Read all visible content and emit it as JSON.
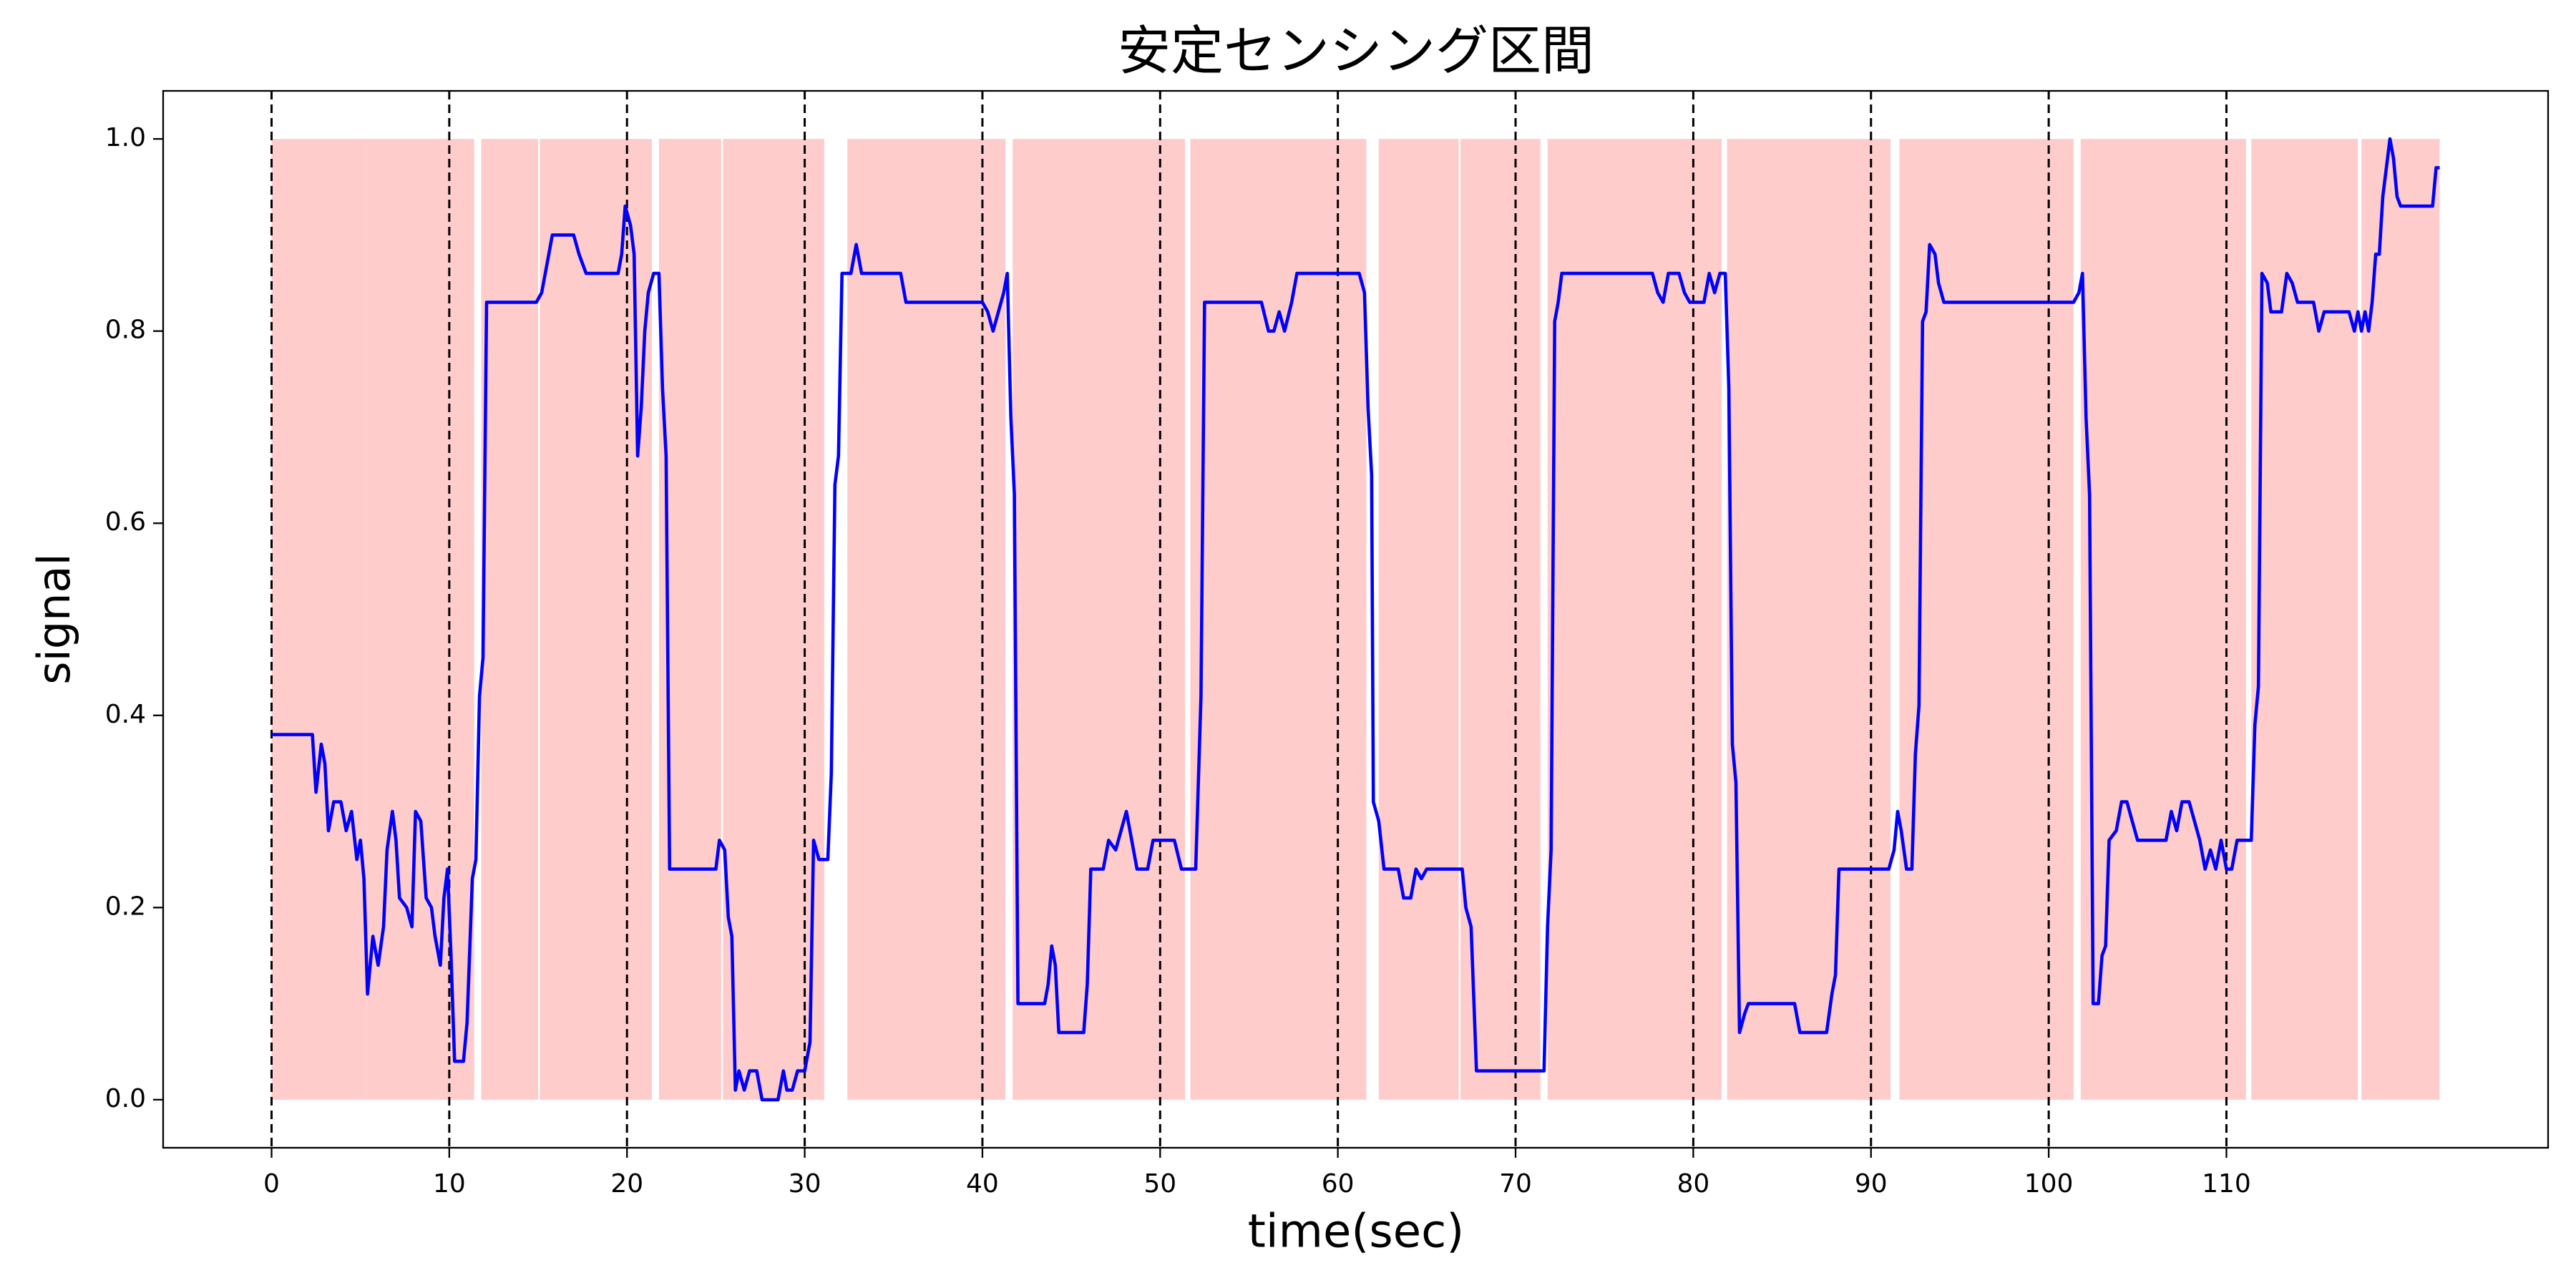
{
  "chart_data": {
    "type": "line",
    "title": "安定センシング区間",
    "xlabel": "time(sec)",
    "ylabel": "signal",
    "xlim": [
      -6.1,
      128.1
    ],
    "ylim": [
      -0.05,
      1.05
    ],
    "xticks": [
      0,
      10,
      20,
      30,
      40,
      50,
      60,
      70,
      80,
      90,
      100,
      110
    ],
    "yticks": [
      {
        "value": 0,
        "label": "0.0"
      },
      {
        "value": 0.2,
        "label": "0.2"
      },
      {
        "value": 0.4,
        "label": "0.4"
      },
      {
        "value": 0.6,
        "label": "0.6"
      },
      {
        "value": 0.8,
        "label": "0.8"
      },
      {
        "value": 1,
        "label": "1.0"
      }
    ],
    "dashed_tick_lines": true,
    "span_color": "#ffcccc",
    "span_y": [
      0,
      1
    ],
    "spans": [
      [
        0,
        5.3
      ],
      [
        5.3,
        11.4
      ],
      [
        11.8,
        15.0
      ],
      [
        15.1,
        21.4
      ],
      [
        21.8,
        25.3
      ],
      [
        25.4,
        31.1
      ],
      [
        32.4,
        41.3
      ],
      [
        41.7,
        51.4
      ],
      [
        51.7,
        61.6
      ],
      [
        62.3,
        66.8
      ],
      [
        66.9,
        71.4
      ],
      [
        71.8,
        81.6
      ],
      [
        81.9,
        91.1
      ],
      [
        91.6,
        101.4
      ],
      [
        101.8,
        111.1
      ],
      [
        111.4,
        117.4
      ],
      [
        117.6,
        122.0
      ]
    ],
    "series": [
      {
        "color": "#0000ff",
        "x": [
          0,
          2.3,
          2.5,
          2.8,
          3.0,
          3.2,
          3.5,
          3.9,
          4.2,
          4.5,
          4.8,
          5.0,
          5.2,
          5.4,
          5.7,
          6.0,
          6.3,
          6.5,
          6.8,
          7.0,
          7.2,
          7.6,
          7.9,
          8.1,
          8.4,
          8.7,
          9.0,
          9.2,
          9.5,
          9.7,
          9.9,
          10.1,
          10.3,
          10.8,
          11.0,
          11.3,
          11.5,
          11.7,
          11.9,
          12.1,
          14.9,
          15.2,
          15.5,
          15.8,
          17.0,
          17.3,
          17.7,
          19.5,
          19.7,
          19.9,
          20.2,
          20.4,
          20.6,
          20.8,
          21.0,
          21.2,
          21.5,
          21.8,
          22.0,
          22.2,
          22.4,
          25.0,
          25.2,
          25.5,
          25.7,
          25.9,
          26.1,
          26.3,
          26.6,
          26.9,
          27.3,
          27.6,
          28.5,
          28.8,
          29.0,
          29.3,
          29.6,
          30.0,
          30.3,
          30.5,
          30.8,
          31.3,
          31.5,
          31.7,
          31.9,
          32.1,
          32.6,
          32.9,
          33.2,
          35.4,
          35.7,
          40.0,
          40.3,
          40.6,
          40.9,
          41.2,
          41.4,
          41.6,
          41.8,
          42.0,
          43.5,
          43.7,
          43.9,
          44.1,
          44.3,
          45.7,
          45.9,
          46.1,
          46.8,
          47.1,
          47.5,
          47.8,
          48.1,
          48.4,
          48.7,
          49.3,
          49.6,
          50.8,
          51.2,
          52.0,
          52.3,
          52.5,
          55.7,
          56.1,
          56.4,
          56.7,
          57.0,
          57.4,
          57.7,
          61.2,
          61.5,
          61.7,
          61.9,
          62.0,
          62.3,
          62.6,
          63.4,
          63.7,
          64.1,
          64.4,
          64.7,
          65.0,
          67.0,
          67.2,
          67.5,
          67.8,
          71.6,
          71.8,
          72.0,
          72.2,
          72.4,
          72.6,
          77.7,
          78.0,
          78.3,
          78.6,
          79.2,
          79.5,
          79.8,
          80.6,
          80.9,
          81.2,
          81.5,
          81.8,
          82.0,
          82.2,
          82.4,
          82.6,
          82.9,
          83.1,
          85.7,
          86.0,
          87.5,
          87.8,
          88.0,
          88.2,
          91.0,
          91.3,
          91.5,
          91.7,
          92.0,
          92.3,
          92.5,
          92.7,
          92.9,
          93.1,
          93.3,
          93.6,
          93.8,
          94.1,
          101.4,
          101.7,
          101.9,
          102.1,
          102.3,
          102.5,
          102.8,
          103.0,
          103.2,
          103.4,
          103.8,
          104.1,
          104.4,
          104.7,
          105.0,
          106.6,
          106.9,
          107.2,
          107.5,
          107.9,
          108.2,
          108.5,
          108.8,
          109.1,
          109.4,
          109.7,
          110.0,
          110.3,
          110.6,
          111.4,
          111.6,
          111.8,
          112.0,
          112.3,
          112.5,
          113.1,
          113.4,
          113.7,
          114.0,
          114.9,
          115.2,
          115.5,
          116.9,
          117.2,
          117.4,
          117.6,
          117.8,
          118.0,
          118.2,
          118.4,
          118.6,
          118.8,
          119.0,
          119.2,
          119.4,
          119.6,
          119.8,
          121.6,
          121.8,
          122.0
        ],
        "values": [
          0.38,
          0.38,
          0.32,
          0.37,
          0.35,
          0.28,
          0.31,
          0.31,
          0.28,
          0.3,
          0.25,
          0.27,
          0.23,
          0.11,
          0.17,
          0.14,
          0.18,
          0.26,
          0.3,
          0.27,
          0.21,
          0.2,
          0.18,
          0.3,
          0.29,
          0.21,
          0.2,
          0.17,
          0.14,
          0.21,
          0.24,
          0.15,
          0.04,
          0.04,
          0.08,
          0.23,
          0.25,
          0.42,
          0.46,
          0.83,
          0.83,
          0.84,
          0.87,
          0.9,
          0.9,
          0.88,
          0.86,
          0.86,
          0.88,
          0.93,
          0.91,
          0.88,
          0.67,
          0.72,
          0.8,
          0.84,
          0.86,
          0.86,
          0.74,
          0.67,
          0.24,
          0.24,
          0.27,
          0.26,
          0.19,
          0.17,
          0.01,
          0.03,
          0.01,
          0.03,
          0.03,
          0.0,
          0.0,
          0.03,
          0.01,
          0.01,
          0.03,
          0.03,
          0.06,
          0.27,
          0.25,
          0.25,
          0.34,
          0.64,
          0.67,
          0.86,
          0.86,
          0.89,
          0.86,
          0.86,
          0.83,
          0.83,
          0.82,
          0.8,
          0.82,
          0.84,
          0.86,
          0.71,
          0.63,
          0.1,
          0.1,
          0.12,
          0.16,
          0.14,
          0.07,
          0.07,
          0.12,
          0.24,
          0.24,
          0.27,
          0.26,
          0.28,
          0.3,
          0.27,
          0.24,
          0.24,
          0.27,
          0.27,
          0.24,
          0.24,
          0.42,
          0.83,
          0.83,
          0.8,
          0.8,
          0.82,
          0.8,
          0.83,
          0.86,
          0.86,
          0.84,
          0.72,
          0.65,
          0.31,
          0.29,
          0.24,
          0.24,
          0.21,
          0.21,
          0.24,
          0.23,
          0.24,
          0.24,
          0.2,
          0.18,
          0.03,
          0.03,
          0.18,
          0.26,
          0.81,
          0.83,
          0.86,
          0.86,
          0.84,
          0.83,
          0.86,
          0.86,
          0.84,
          0.83,
          0.83,
          0.86,
          0.84,
          0.86,
          0.86,
          0.74,
          0.37,
          0.33,
          0.07,
          0.09,
          0.1,
          0.1,
          0.07,
          0.07,
          0.11,
          0.13,
          0.24,
          0.24,
          0.26,
          0.3,
          0.28,
          0.24,
          0.24,
          0.36,
          0.41,
          0.81,
          0.82,
          0.89,
          0.88,
          0.85,
          0.83,
          0.83,
          0.84,
          0.86,
          0.71,
          0.63,
          0.1,
          0.1,
          0.15,
          0.16,
          0.27,
          0.28,
          0.31,
          0.31,
          0.29,
          0.27,
          0.27,
          0.3,
          0.28,
          0.31,
          0.31,
          0.29,
          0.27,
          0.24,
          0.26,
          0.24,
          0.27,
          0.24,
          0.24,
          0.27,
          0.27,
          0.39,
          0.43,
          0.86,
          0.85,
          0.82,
          0.82,
          0.86,
          0.85,
          0.83,
          0.83,
          0.8,
          0.82,
          0.82,
          0.8,
          0.82,
          0.8,
          0.82,
          0.8,
          0.83,
          0.88,
          0.88,
          0.94,
          0.97,
          1.0,
          0.98,
          0.94,
          0.93,
          0.93,
          0.97,
          0.97
        ]
      }
    ]
  }
}
